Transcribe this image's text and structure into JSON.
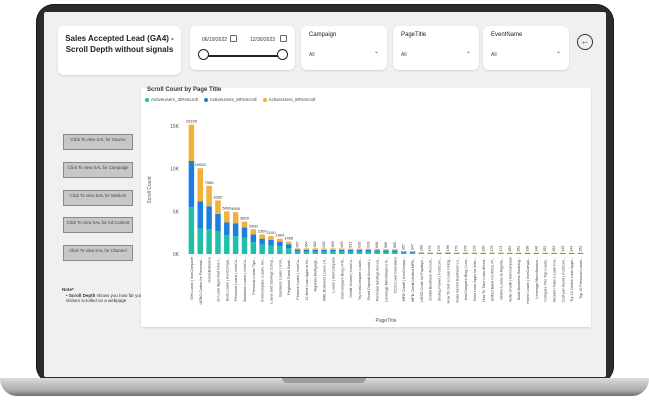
{
  "title": "Sales Accepted Lead (GA4) - Scroll Depth without signals",
  "date_filter": {
    "start": "06/19/2022",
    "end": "12/30/2023"
  },
  "filters": [
    {
      "label": "Campaign",
      "value": "All"
    },
    {
      "label": "PageTitle",
      "value": "All"
    },
    {
      "label": "EventName",
      "value": "All"
    }
  ],
  "side_buttons": [
    "Click To view SAL for Source",
    "Click To view SAL for Campaign",
    "Click To view SAL for Medium",
    "Click To view SAL for Ad Content",
    "Click To view SAL for Channel"
  ],
  "note": {
    "heading": "Note*",
    "bold": "Scroll Depth",
    "text": "shows you how far your visitors scrolled on a webpage"
  },
  "colors": {
    "s40": "#1fbfa8",
    "s50": "#1a7fe0",
    "s80": "#f2b13a"
  },
  "chart_data": {
    "type": "bar",
    "title": "Scroll Count by Page Title",
    "xlabel": "PageTitle",
    "ylabel": "Scroll Count",
    "yticks": [
      "15K",
      "10K",
      "5K",
      "0K"
    ],
    "ylim": [
      0,
      15000
    ],
    "legend_position": "top-left",
    "series": [
      {
        "name": "ActiveUsers_40%Scroll"
      },
      {
        "name": "ActiveUsers_50%Scroll"
      },
      {
        "name": "ActiveUsers_80%Scroll"
      }
    ],
    "categories": [
      "Get Loans | IronCompare",
      "UEBO Codes for Personal...",
      "HomeEntrance",
      "20 Loan Apps that Give I...",
      "Best Loans | IronCompa...",
      "Personal Loans | IronCo...",
      "Business Loans | IronCo...",
      "Personal Loans Tips...",
      "IronCompare: Loans, Inv...",
      "Loans and Savings Comp...",
      "Business Loans | Iron...",
      "Regional Rural Bank...",
      "Finance Loans | IronCo...",
      "12 Best Loan Apps in Ni...",
      "Nigerian Mortgage...",
      "SME Business Loans | Ir...",
      "Loans | IronCompare",
      "IronCompare Blog | Fin...",
      "Credit Scores | IronCo...",
      "Try IronCompare Loans...",
      "Fixed Deposit Account |...",
      "Personal Savings Accou...",
      "Leverage Microfinance B...",
      "DCU Loan Calculator",
      "MFB Credit | IronCompa...",
      "MFB Credit Limited MFB...",
      "USSD Code for Paydays...",
      "Zenith Business Accoun...",
      "Saving Power | IronCom...",
      "How To Get a Loan Using...",
      "Solar Sector Business Lo...",
      "IronCompare Blog | Loa...",
      "Best Loan Apps for Afric...",
      "How To Take Loan Afford...",
      "United Bank for Africa Pl...",
      "Online Loans in Nigeria...",
      "Aella Credit | IronCompare",
      "Kuda Business Banking...",
      "Home Loans | IronCompa...",
      "Leverage Microfinance...",
      "Compare The Top Loans...",
      "Should I Take a Loan For...",
      "Cost per Asset | IronCom...",
      "Try 10 Online Loan Apps...",
      "Top 10 Personal Loans..."
    ],
    "totals": [
      15165,
      10052,
      7985,
      6282,
      5000,
      4900,
      3800,
      2900,
      2300,
      2100,
      1800,
      1465,
      667,
      654,
      662,
      645,
      659,
      645,
      623,
      626,
      629,
      608,
      565,
      565,
      357,
      347,
      200,
      176,
      176,
      199,
      176,
      176,
      176,
      160,
      176,
      174,
      152,
      152,
      168,
      146,
      152,
      152,
      145,
      144,
      152
    ],
    "shares": {
      "s40": [
        5478,
        3000,
        2900,
        2700,
        2200,
        2100,
        1900,
        1400,
        1100,
        1000,
        900,
        700,
        300,
        280,
        280,
        270,
        280,
        270,
        260,
        260,
        260,
        250,
        240,
        240,
        150,
        150,
        90,
        80,
        80,
        90,
        80,
        80,
        80,
        70,
        80,
        80,
        70,
        70,
        75,
        65,
        70,
        70,
        65,
        65,
        70
      ],
      "s50": [
        5422,
        3152,
        2700,
        2000,
        1500,
        1500,
        1200,
        900,
        700,
        650,
        550,
        450,
        220,
        220,
        220,
        210,
        220,
        215,
        205,
        205,
        210,
        200,
        190,
        190,
        120,
        115,
        65,
        60,
        60,
        65,
        60,
        60,
        60,
        55,
        60,
        58,
        50,
        50,
        55,
        48,
        50,
        50,
        48,
        48,
        50
      ]
    },
    "data_labels": {
      "bar1": [
        "5478",
        "5422",
        "3907"
      ],
      "bar2": [
        "3152",
        "3900"
      ],
      "bar3": [
        "2700",
        "2682"
      ]
    }
  }
}
